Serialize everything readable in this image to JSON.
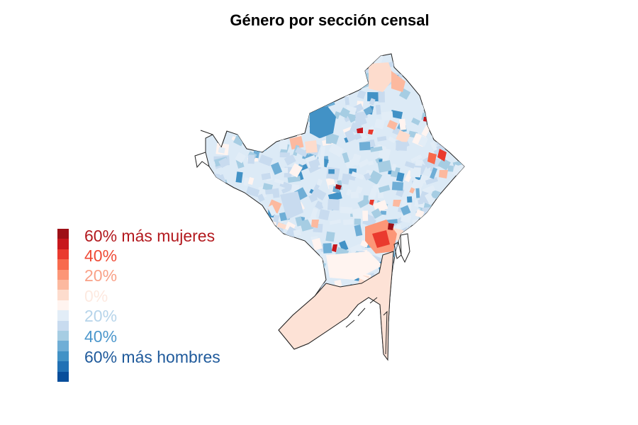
{
  "title": "Género por sección censal",
  "colors": {
    "scale": [
      "#9e1017",
      "#c8171d",
      "#ea3a2e",
      "#f86a4d",
      "#fc9677",
      "#fcb99f",
      "#fddccd",
      "#fff4f0",
      "#e2edf7",
      "#c8dbef",
      "#a6cde3",
      "#6faed6",
      "#4292c6",
      "#2171b5",
      "#084e9b"
    ],
    "coast_line": "#222222"
  },
  "legend": {
    "labels": [
      {
        "text": "60% más mujeres",
        "color": "#b3191e"
      },
      {
        "text": "40%",
        "color": "#ef4a36"
      },
      {
        "text": "20%",
        "color": "#f9a188"
      },
      {
        "text": "0%",
        "color": "#fde9e0"
      },
      {
        "text": "20%",
        "color": "#b6d4ea"
      },
      {
        "text": "40%",
        "color": "#4c97cc"
      },
      {
        "text": "60% más hombres",
        "color": "#1f5a9b"
      }
    ]
  }
}
